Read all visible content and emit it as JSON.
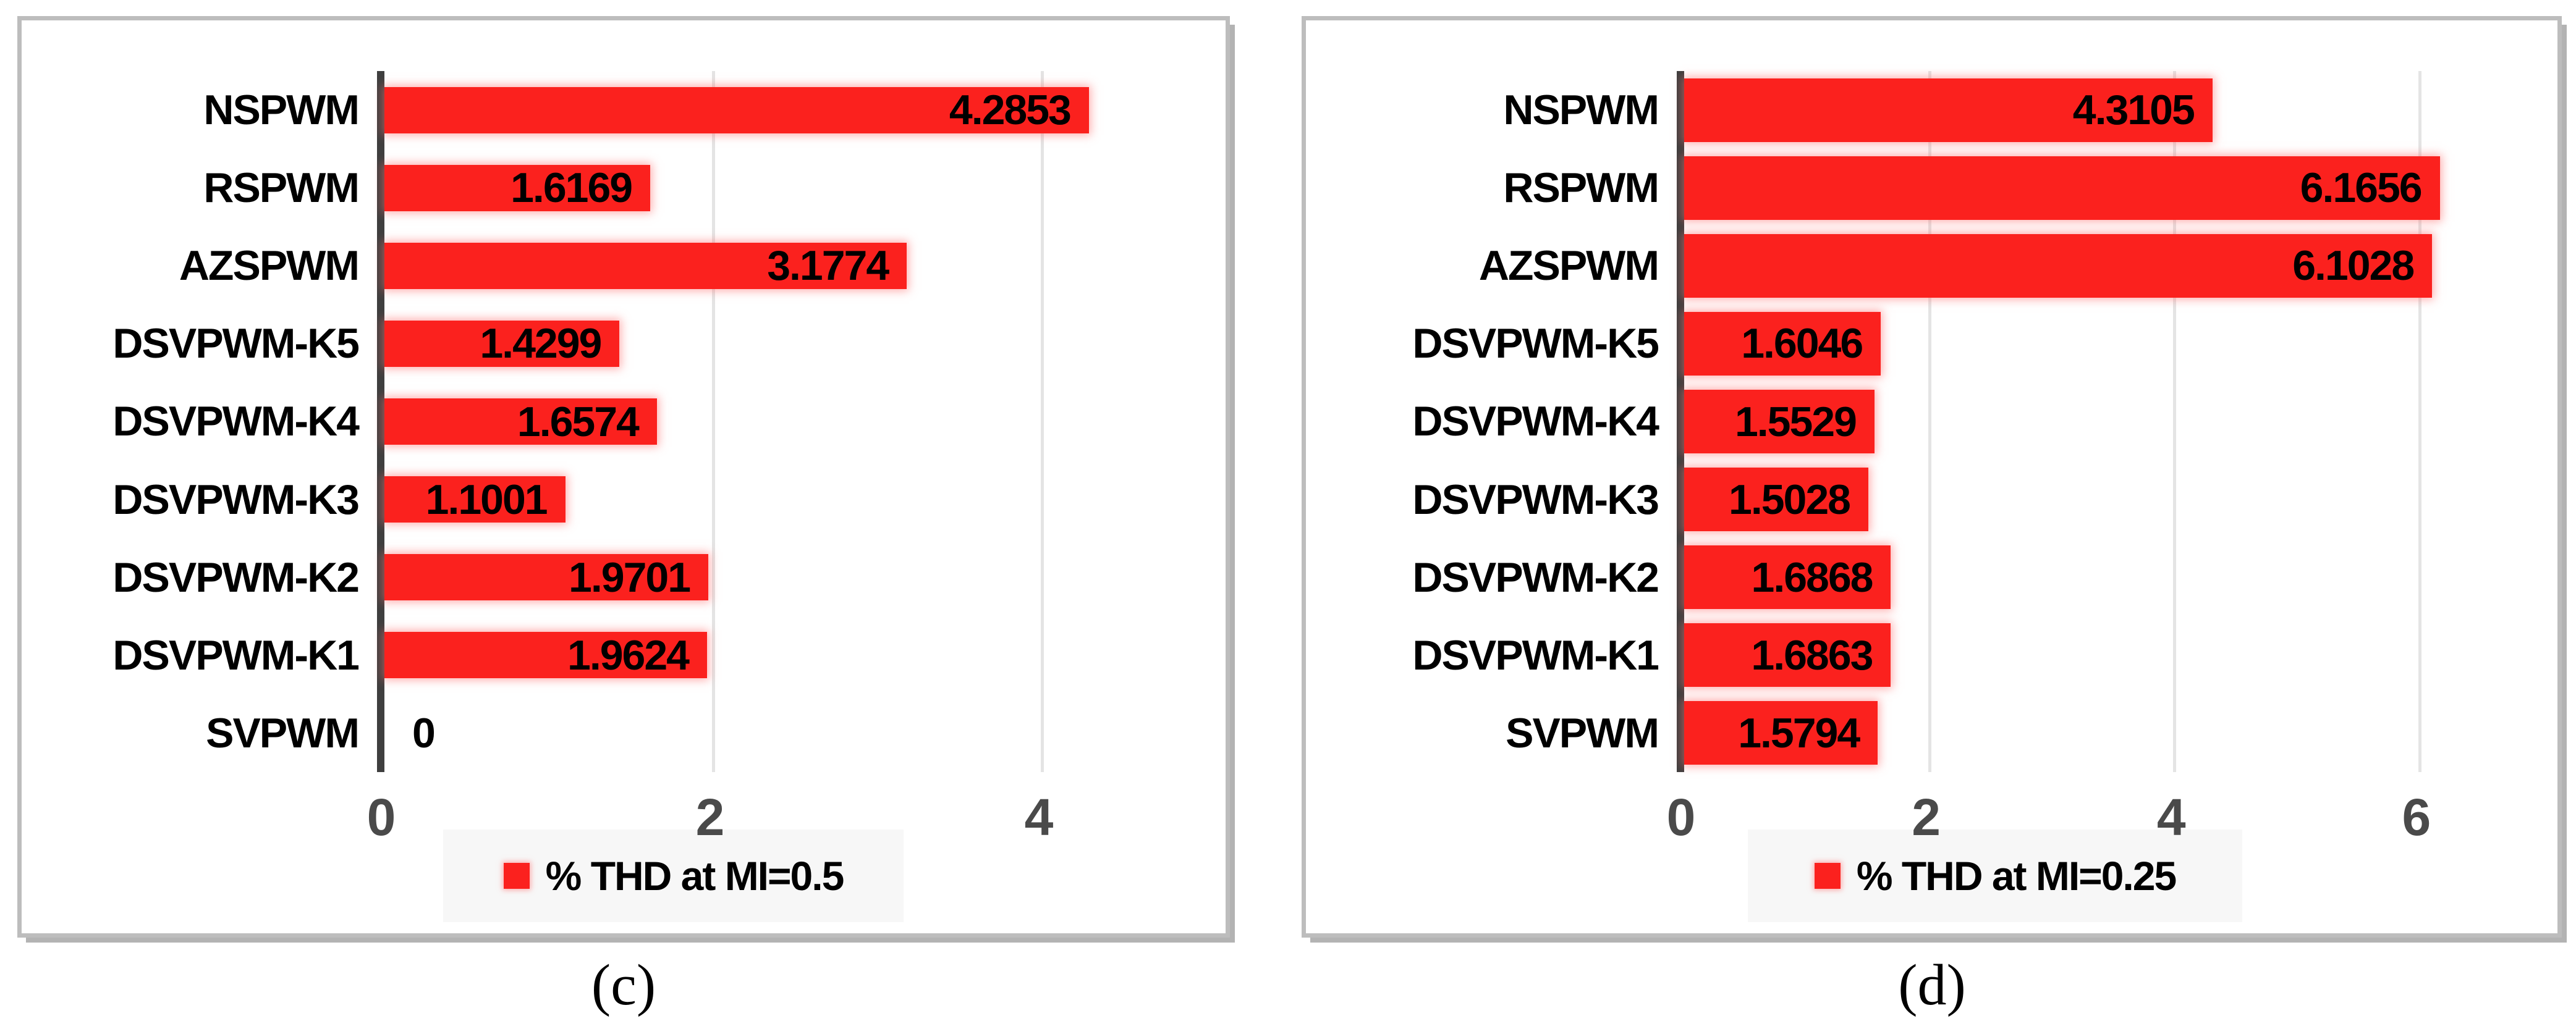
{
  "chart_data": [
    {
      "type": "bar",
      "orientation": "horizontal",
      "panel": "left",
      "caption": "(c)",
      "categories": [
        "NSPWM",
        "RSPWM",
        "AZSPWM",
        "DSVPWM-K5",
        "DSVPWM-K4",
        "DSVPWM-K3",
        "DSVPWM-K2",
        "DSVPWM-K1",
        "SVPWM"
      ],
      "values": [
        4.2853,
        1.6169,
        3.1774,
        1.4299,
        1.6574,
        1.1001,
        1.9701,
        1.9624,
        0
      ],
      "value_labels": [
        "4.2853",
        "1.6169",
        "3.1774",
        "1.4299",
        "1.6574",
        "1.1001",
        "1.9701",
        "1.9624",
        "0"
      ],
      "legend": [
        "% THD at MI=0.5"
      ],
      "legend_position": "bottom",
      "xlabel": "",
      "ylabel": "",
      "xlim": [
        0,
        5.1
      ],
      "xticks": [
        0,
        2,
        4
      ],
      "grid": true,
      "bar_color": "#fb211e",
      "axis_color": "#3f3f3f",
      "grid_color": "#e4e4e4",
      "panel_border_color": "#bdbdbd"
    },
    {
      "type": "bar",
      "orientation": "horizontal",
      "panel": "right",
      "caption": "(d)",
      "categories": [
        "NSPWM",
        "RSPWM",
        "AZSPWM",
        "DSVPWM-K5",
        "DSVPWM-K4",
        "DSVPWM-K3",
        "DSVPWM-K2",
        "DSVPWM-K1",
        "SVPWM"
      ],
      "values": [
        4.3105,
        6.1656,
        6.1028,
        1.6046,
        1.5529,
        1.5028,
        1.6868,
        1.6863,
        1.5794
      ],
      "value_labels": [
        "4.3105",
        "6.1656",
        "6.1028",
        "1.6046",
        "1.5529",
        "1.5028",
        "1.6868",
        "1.6863",
        "1.5794"
      ],
      "legend": [
        "% THD at MI=0.25"
      ],
      "legend_position": "bottom",
      "xlabel": "",
      "ylabel": "",
      "xlim": [
        0,
        7.1
      ],
      "xticks": [
        0,
        2,
        4,
        6
      ],
      "grid": true,
      "bar_color": "#fb211e",
      "axis_color": "#3f3f3f",
      "grid_color": "#e4e4e4",
      "panel_border_color": "#bdbdbd"
    }
  ]
}
